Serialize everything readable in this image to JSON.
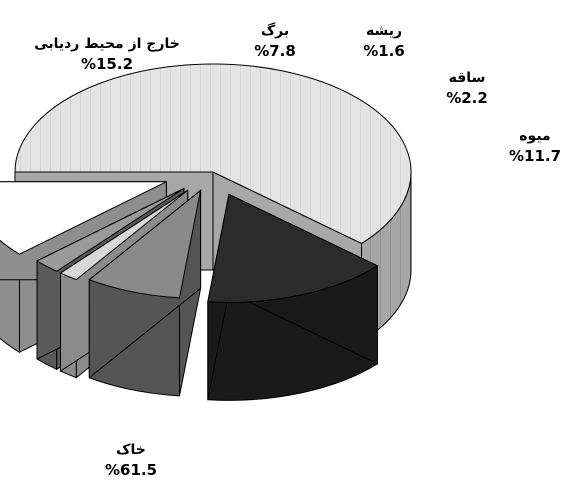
{
  "chart_data": {
    "type": "pie",
    "style": "3d-exploded",
    "slices": [
      {
        "label": "خاک",
        "value_text": "%61.5",
        "value": 61.5,
        "fill": "#e0e0e0",
        "side": "#a8a8a8"
      },
      {
        "label": "خارج از محیط ردیابی",
        "value_text": "%15.2",
        "value": 15.2,
        "fill": "#2b2b2b",
        "side": "#1a1a1a"
      },
      {
        "label": "برگ",
        "value_text": "%7.8",
        "value": 7.8,
        "fill": "#8a8a8a",
        "side": "#555555"
      },
      {
        "label": "ریشه",
        "value_text": "%1.6",
        "value": 1.6,
        "fill": "#d8d8d8",
        "side": "#8c8c8c"
      },
      {
        "label": "ساقه",
        "value_text": "%2.2",
        "value": 2.2,
        "fill": "#9a9a9a",
        "side": "#5a5a5a"
      },
      {
        "label": "میوه",
        "value_text": "%11.7",
        "value": 11.7,
        "fill": "#ffffff",
        "side": "#8e8e8e"
      }
    ]
  }
}
